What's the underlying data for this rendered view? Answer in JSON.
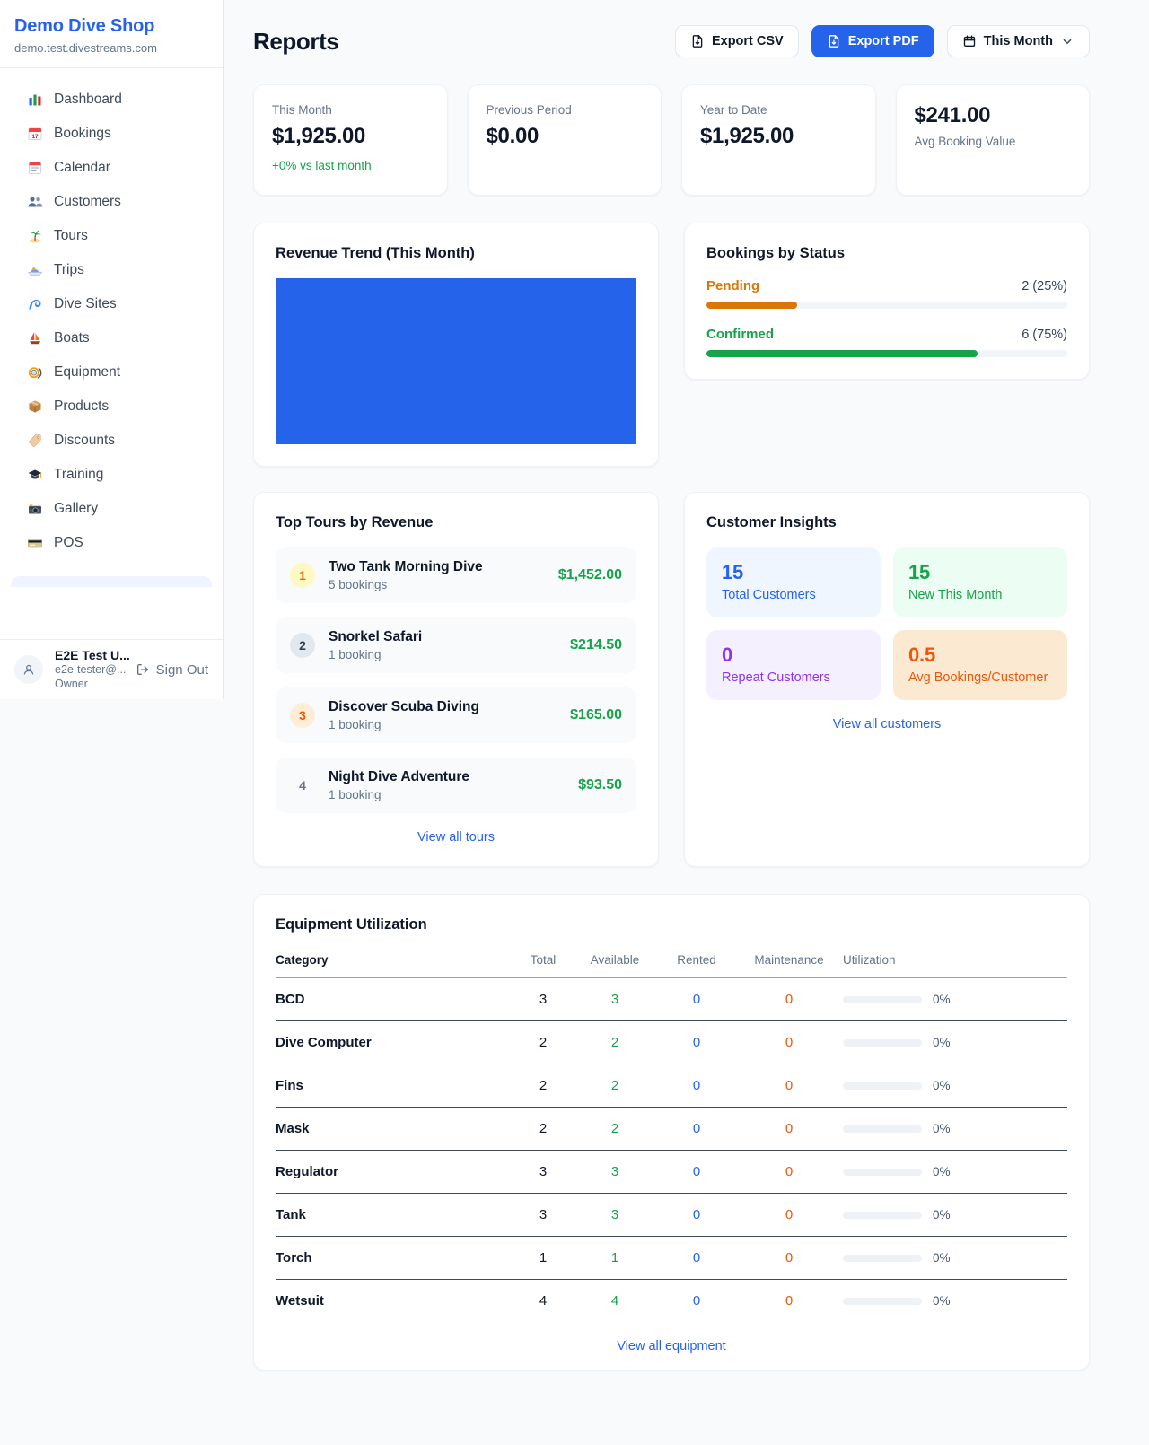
{
  "colors": {
    "accent": "#2563eb",
    "green": "#16a34a",
    "amber": "#d97706",
    "orange": "#ea580c",
    "purple": "#9333ea"
  },
  "sidebar": {
    "shop_name": "Demo Dive Shop",
    "shop_domain": "demo.test.divestreams.com",
    "items": [
      {
        "label": "Dashboard",
        "icon": "bar-chart-icon"
      },
      {
        "label": "Bookings",
        "icon": "calendar-date-icon"
      },
      {
        "label": "Calendar",
        "icon": "tear-calendar-icon"
      },
      {
        "label": "Customers",
        "icon": "two-people-icon"
      },
      {
        "label": "Tours",
        "icon": "palm-island-icon"
      },
      {
        "label": "Trips",
        "icon": "speedboat-icon"
      },
      {
        "label": "Dive Sites",
        "icon": "wave-icon"
      },
      {
        "label": "Boats",
        "icon": "sailboat-icon"
      },
      {
        "label": "Equipment",
        "icon": "dive-mask-icon"
      },
      {
        "label": "Products",
        "icon": "box-icon"
      },
      {
        "label": "Discounts",
        "icon": "tag-icon"
      },
      {
        "label": "Training",
        "icon": "grad-cap-icon"
      },
      {
        "label": "Gallery",
        "icon": "camera-icon"
      },
      {
        "label": "POS",
        "icon": "credit-card-icon"
      }
    ],
    "user": {
      "name": "E2E Test U...",
      "email": "e2e-tester@...",
      "role": "Owner",
      "sign_out_label": "Sign Out"
    }
  },
  "header": {
    "title": "Reports",
    "export_csv_label": "Export CSV",
    "export_pdf_label": "Export PDF",
    "period_label": "This Month"
  },
  "stats": [
    {
      "label": "This Month",
      "value": "$1,925.00",
      "note": "+0% vs last month"
    },
    {
      "label": "Previous Period",
      "value": "$0.00"
    },
    {
      "label": "Year to Date",
      "value": "$1,925.00"
    },
    {
      "label": "Avg Booking Value",
      "value": "$241.00"
    }
  ],
  "revenue_trend": {
    "title": "Revenue Trend (This Month)",
    "bar_color": "#2563eb"
  },
  "bookings_by_status": {
    "title": "Bookings by Status",
    "rows": [
      {
        "label": "Pending",
        "count": "2 (25%)",
        "pct": "25%",
        "color": "#d97706"
      },
      {
        "label": "Confirmed",
        "count": "6 (75%)",
        "pct": "75%",
        "color": "#16a34a"
      }
    ]
  },
  "chart_data": [
    {
      "type": "bar",
      "title": "Revenue Trend (This Month)",
      "categories": [
        "This Month"
      ],
      "values": [
        1925
      ],
      "bar_color": "#2563eb",
      "note": "single full-area bar, no axes or gridlines"
    },
    {
      "type": "bar",
      "title": "Bookings by Status",
      "orientation": "horizontal",
      "categories": [
        "Pending",
        "Confirmed"
      ],
      "values": [
        2,
        6
      ],
      "percentages": [
        25,
        75
      ],
      "colors": [
        "#d97706",
        "#16a34a"
      ]
    }
  ],
  "top_tours": {
    "title": "Top Tours by Revenue",
    "rows": [
      {
        "rank": "1",
        "name": "Two Tank Morning Dive",
        "bookings": "5 bookings",
        "amount": "$1,452.00",
        "badge_bg": "#fef9c3",
        "badge_color": "#d97706"
      },
      {
        "rank": "2",
        "name": "Snorkel Safari",
        "bookings": "1 booking",
        "amount": "$214.50",
        "badge_bg": "#e2e8f0",
        "badge_color": "#334155"
      },
      {
        "rank": "3",
        "name": "Discover Scuba Diving",
        "bookings": "1 booking",
        "amount": "$165.00",
        "badge_bg": "#ffedd5",
        "badge_color": "#ea580c"
      },
      {
        "rank": "4",
        "name": "Night Dive Adventure",
        "bookings": "1 booking",
        "amount": "$93.50",
        "badge_bg": "transparent",
        "badge_color": "#64748b"
      }
    ],
    "link": "View all tours"
  },
  "customer_insights": {
    "title": "Customer Insights",
    "tiles": [
      {
        "value": "15",
        "label": "Total Customers",
        "bg": "#eff6ff",
        "color": "#2563eb"
      },
      {
        "value": "15",
        "label": "New This Month",
        "bg": "#ecfdf3",
        "color": "#16a34a"
      },
      {
        "value": "0",
        "label": "Repeat Customers",
        "bg": "#f5f0fe",
        "color": "#9333ea"
      },
      {
        "value": "0.5",
        "label": "Avg Bookings/Customer",
        "bg": "#fbe9d2",
        "color": "#ea580c"
      }
    ],
    "link": "View all customers"
  },
  "equipment": {
    "title": "Equipment Utilization",
    "columns": [
      "Category",
      "Total",
      "Available",
      "Rented",
      "Maintenance",
      "Utilization"
    ],
    "rows": [
      {
        "category": "BCD",
        "total": "3",
        "available": "3",
        "rented": "0",
        "maintenance": "0",
        "utilization": "0%"
      },
      {
        "category": "Dive Computer",
        "total": "2",
        "available": "2",
        "rented": "0",
        "maintenance": "0",
        "utilization": "0%"
      },
      {
        "category": "Fins",
        "total": "2",
        "available": "2",
        "rented": "0",
        "maintenance": "0",
        "utilization": "0%"
      },
      {
        "category": "Mask",
        "total": "2",
        "available": "2",
        "rented": "0",
        "maintenance": "0",
        "utilization": "0%"
      },
      {
        "category": "Regulator",
        "total": "3",
        "available": "3",
        "rented": "0",
        "maintenance": "0",
        "utilization": "0%"
      },
      {
        "category": "Tank",
        "total": "3",
        "available": "3",
        "rented": "0",
        "maintenance": "0",
        "utilization": "0%"
      },
      {
        "category": "Torch",
        "total": "1",
        "available": "1",
        "rented": "0",
        "maintenance": "0",
        "utilization": "0%"
      },
      {
        "category": "Wetsuit",
        "total": "4",
        "available": "4",
        "rented": "0",
        "maintenance": "0",
        "utilization": "0%"
      }
    ],
    "link": "View all equipment"
  }
}
